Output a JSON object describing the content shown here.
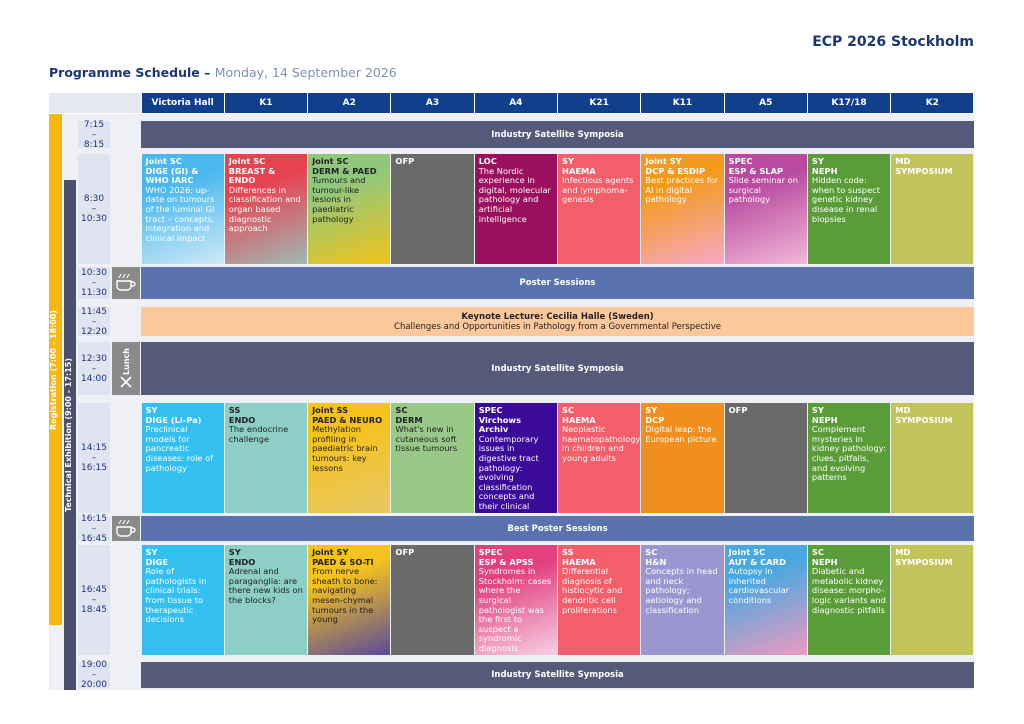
{
  "header": {
    "brand": "ECP 2026 Stockholm",
    "title": "Programme Schedule –",
    "date": "Monday, 14 September 2026"
  },
  "rooms": [
    "Victoria Hall",
    "K1",
    "A2",
    "A3",
    "A4",
    "K21",
    "K11",
    "A5",
    "K17/18",
    "K2"
  ],
  "side": {
    "registration": "Registration (7:00 - 18:00)",
    "exhibition": "Technical Exhibition (9:00 - 17:15)"
  },
  "rows": [
    {
      "time": [
        "7:15",
        "–",
        "8:15"
      ],
      "band": {
        "label": "Industry Satellite Symposia",
        "color": "#565a7a"
      }
    },
    {
      "time": [
        "8:30",
        "–",
        "10:30"
      ],
      "sessions": [
        {
          "type": "Joint SC",
          "code": "DIGE (GI) & WHO IARC",
          "desc": "WHO 2026: up-date on tumours of the luminal GI tract – concepts, integration and clinical impact",
          "color": "#48b8ee",
          "color2": "#cfe9f7"
        },
        {
          "type": "Joint SC",
          "code": "BREAST & ENDO",
          "desc": "Differences in classification and organ based diagnostic approach",
          "color": "#e8414f",
          "color2": "#9fb9b4"
        },
        {
          "type": "Joint SC",
          "code": "DERM & PAED",
          "desc": "Tumours and tumour-like lesions in paediatric pathology",
          "color": "#8fc87c",
          "color2": "#f0c21a",
          "ink": "#222"
        },
        {
          "type": "OFP",
          "color": "#6a6a6a"
        },
        {
          "type": "LOC",
          "desc": "The Nordic experience in digital, molecular pathology and artificial intelligence",
          "color": "#9a0f5e"
        },
        {
          "type": "SY",
          "code": "HAEMA",
          "desc": "Infectious agents and lymphoma-genesis",
          "color": "#f25f6b"
        },
        {
          "type": "Joint SY",
          "code": "DCP & ESDIP",
          "desc": "Best practices for AI in digital pathology",
          "color": "#f39a1c",
          "color2": "#f7a8c8"
        },
        {
          "type": "SPEC",
          "code": "ESP & SLAP",
          "desc": "Slide seminar on surgical pathology",
          "color": "#b94aa0",
          "color2": "#f2b8d8"
        },
        {
          "type": "SY",
          "code": "NEPH",
          "desc": "Hidden code: when to suspect genetic kidney disease in renal biopsies",
          "color": "#5a9c38"
        },
        {
          "type": "MD",
          "code": "SYMPOSIUM",
          "color": "#c2c45a"
        }
      ]
    },
    {
      "time": [
        "10:30",
        "–",
        "11:30"
      ],
      "icon": "coffee",
      "band": {
        "label": "Poster Sessions",
        "color": "#5a72ad"
      }
    },
    {
      "time": [
        "11:45",
        "–",
        "12:20"
      ],
      "band": {
        "label": "Keynote Lecture: Cecilia Halle (Sweden)",
        "sub": "Challenges and Opportunities in Pathology from a Governmental Perspective",
        "color": "#fbc89c",
        "ink": "#222"
      }
    },
    {
      "time": [
        "12:30",
        "–",
        "14:00"
      ],
      "icon": "lunch",
      "iconLabel": "Lunch",
      "band": {
        "label": "Industry Satellite Symposia",
        "color": "#565a7a"
      }
    },
    {
      "time": [
        "14:15",
        "–",
        "16:15"
      ],
      "sessions": [
        {
          "type": "SY",
          "code": "DIGE (Li-Pa)",
          "desc": "Preclinical models for pancreatic diseases: role of pathology",
          "color": "#33bff0"
        },
        {
          "type": "SS",
          "code": "ENDO",
          "desc": "The endocrine challenge",
          "color": "#8dcfc6",
          "ink": "#222"
        },
        {
          "type": "Joint SS",
          "code": "PAED & NEURO",
          "desc": "Methylation profiling in paediatric brain tumours: key lessons",
          "color": "#f5c21e",
          "color2": "#e7c766",
          "ink": "#222"
        },
        {
          "type": "SC",
          "code": "DERM",
          "desc": "What's new in cutaneous soft tissue tumours",
          "color": "#98c989",
          "ink": "#222"
        },
        {
          "type": "SPEC",
          "code": "Virchows Archiv",
          "desc": "Contemporary issues in digestive tract pathology: evolving classification concepts and their clinical relevance",
          "color": "#3a0b98"
        },
        {
          "type": "SC",
          "code": "HAEMA",
          "desc": "Neoplastic haematopathology in children and young adults",
          "color": "#f25f6b"
        },
        {
          "type": "SY",
          "code": "DCP",
          "desc": "Digital leap: the European picture",
          "color": "#f08f1e"
        },
        {
          "type": "OFP",
          "color": "#6a6a6a"
        },
        {
          "type": "SY",
          "code": "NEPH",
          "desc": "Complement mysteries in kidney pathology: clues, pitfalls, and evolving patterns",
          "color": "#5a9c38"
        },
        {
          "type": "MD",
          "code": "SYMPOSIUM",
          "color": "#c2c45a"
        }
      ]
    },
    {
      "time": [
        "16:15",
        "–",
        "16:45"
      ],
      "icon": "coffee",
      "band": {
        "label": "Best Poster Sessions",
        "color": "#5a72ad"
      }
    },
    {
      "time": [
        "16:45",
        "–",
        "18:45"
      ],
      "sessions": [
        {
          "type": "SY",
          "code": "DIGE",
          "desc": "Role of pathologists in clinical trials: from tissue to therapeutic decisions",
          "color": "#33bff0"
        },
        {
          "type": "SY",
          "code": "ENDO",
          "desc": "Adrenal and paraganglia: are there new kids on the blocks?",
          "color": "#8dcfc6",
          "ink": "#222"
        },
        {
          "type": "Joint SY",
          "code": "PAED & SO-TI",
          "desc": "From nerve sheath to bone: navigating mesen-chymal tumours in the young",
          "color": "#f5c21e",
          "color2": "#5a4a9a",
          "ink": "#222"
        },
        {
          "type": "OFP",
          "color": "#6a6a6a"
        },
        {
          "type": "SPEC",
          "code": "ESP & APSS",
          "desc": "Syndromes in Stockholm: cases where the surgical pathologist was the first to suspect a syndromic diagnosis",
          "color": "#e2407e",
          "color2": "#f6d0e4"
        },
        {
          "type": "SS",
          "code": "HAEMA",
          "desc": "Differential diagnosis of histiocytic and dendritic cell proliferations",
          "color": "#f25f6b"
        },
        {
          "type": "SC",
          "code": "H&N",
          "desc": "Concepts in head and neck pathology; aetiology and classification",
          "color": "#9a96cf"
        },
        {
          "type": "Joint SC",
          "code": "AUT & CARD",
          "desc": "Autopsy in inherited cardiovascular conditions",
          "color": "#4aa8e0",
          "color2": "#ee9ac0"
        },
        {
          "type": "SC",
          "code": "NEPH",
          "desc": "Diabetic and metabolic kidney disease: morpho-logic variants and diagnostic pitfalls",
          "color": "#5a9c38"
        },
        {
          "type": "MD",
          "code": "SYMPOSIUM",
          "color": "#c2c45a"
        }
      ]
    },
    {
      "time": [
        "19:00",
        "–",
        "20:00"
      ],
      "band": {
        "label": "Industry Satellite Symposia",
        "color": "#565a7a"
      }
    }
  ]
}
